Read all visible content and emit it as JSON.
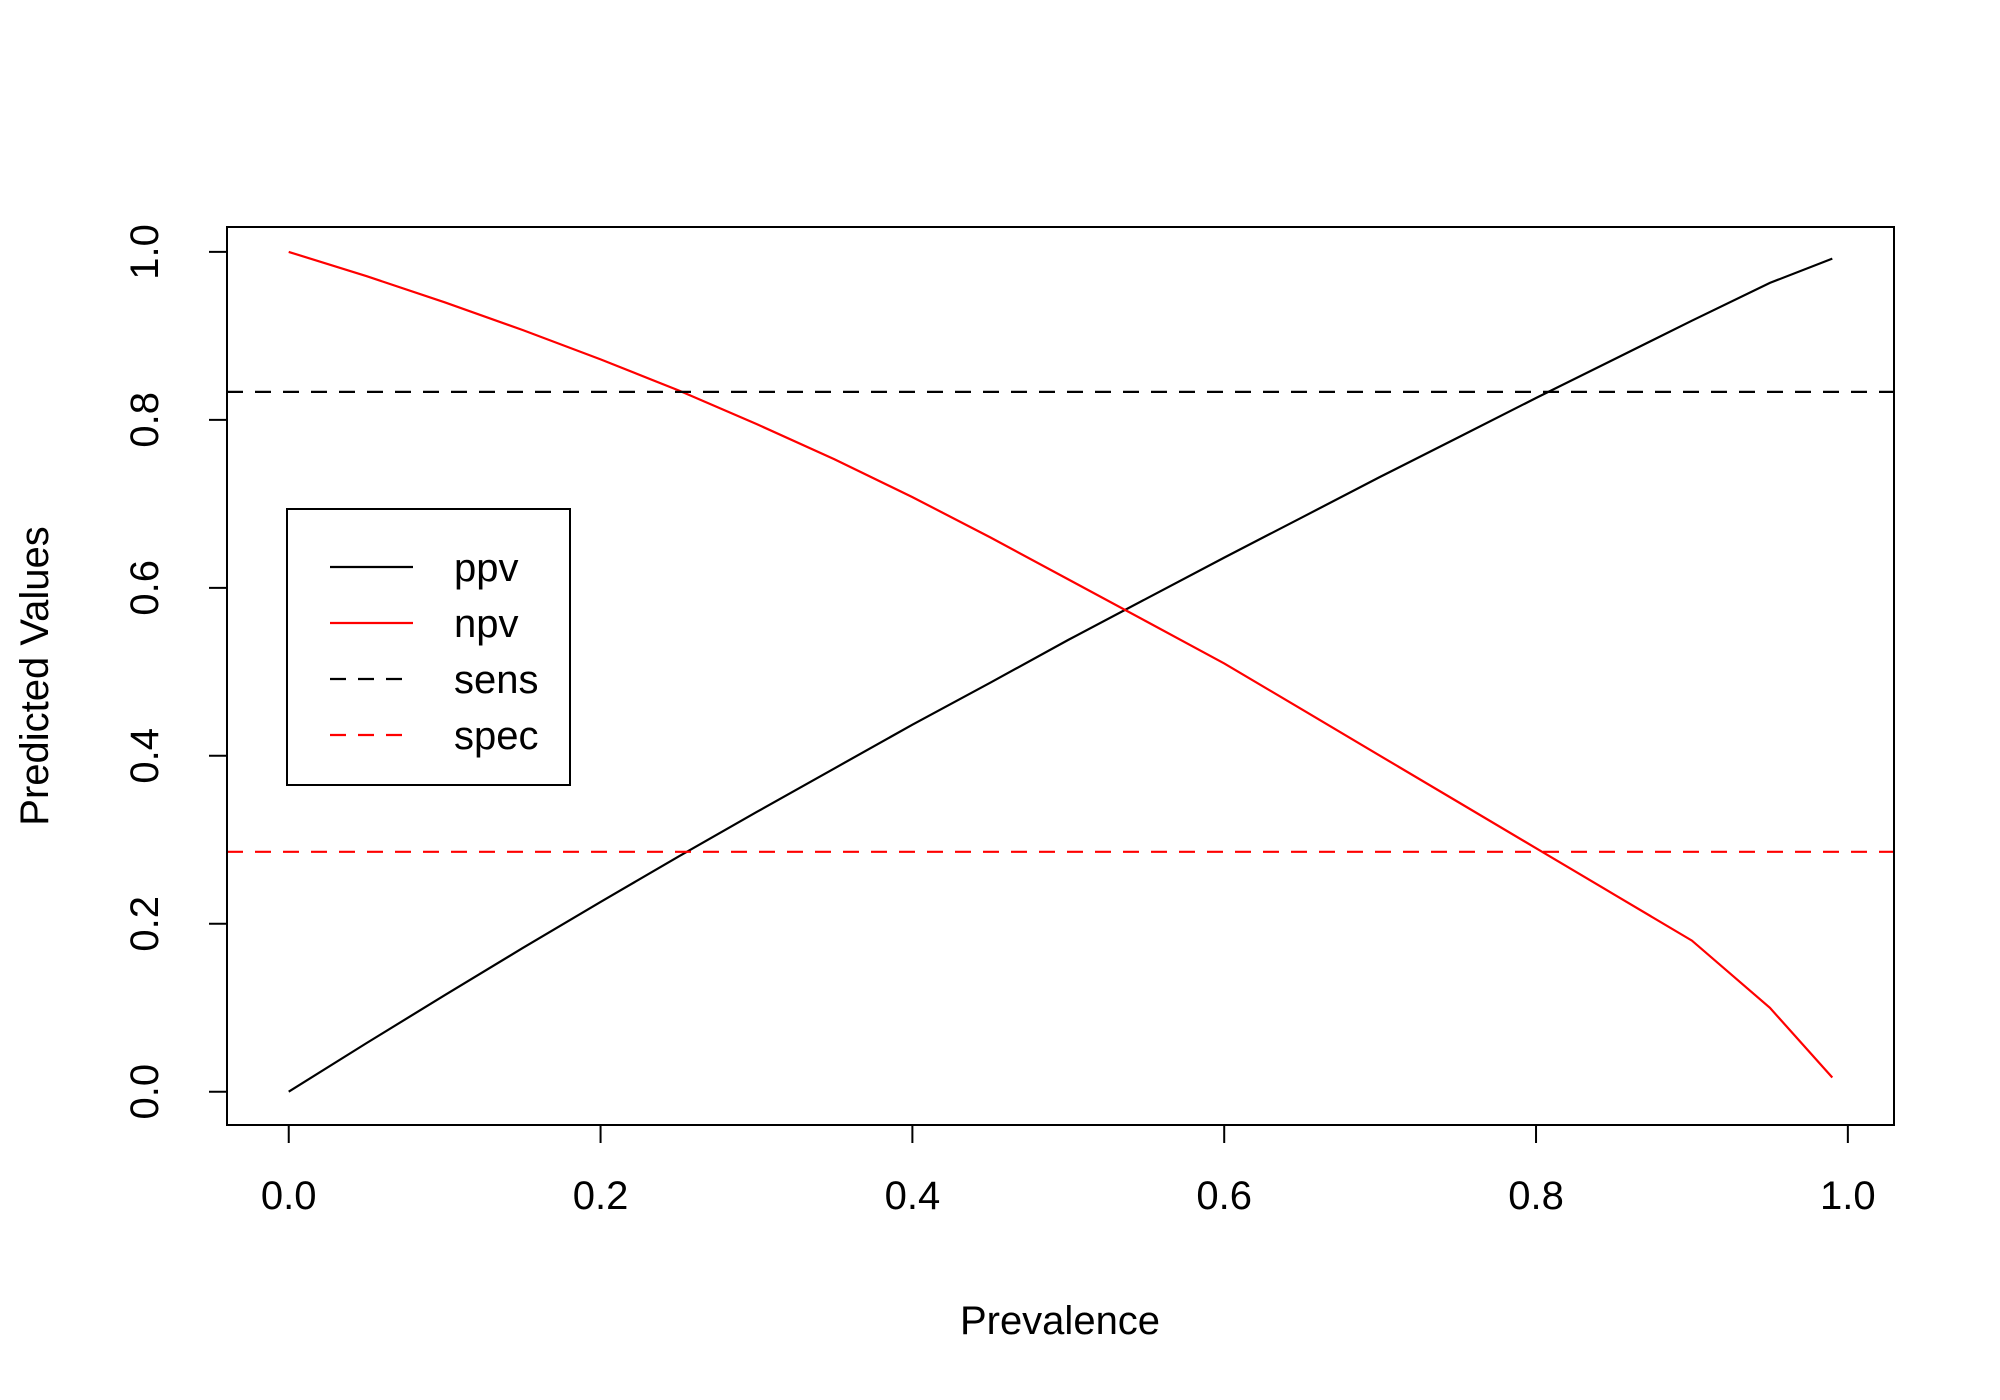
{
  "chart_data": {
    "type": "line",
    "title": "",
    "xlabel": "Prevalence",
    "ylabel": "Predicted Values",
    "xlim": [
      -0.0396,
      1.0296
    ],
    "ylim": [
      -0.0396,
      1.0296
    ],
    "xticks": [
      {
        "value": 0.0,
        "label": "0.0"
      },
      {
        "value": 0.2,
        "label": "0.2"
      },
      {
        "value": 0.4,
        "label": "0.4"
      },
      {
        "value": 0.6,
        "label": "0.6"
      },
      {
        "value": 0.8,
        "label": "0.8"
      },
      {
        "value": 1.0,
        "label": "1.0"
      }
    ],
    "yticks": [
      {
        "value": 0.0,
        "label": "0.0"
      },
      {
        "value": 0.2,
        "label": "0.2"
      },
      {
        "value": 0.4,
        "label": "0.4"
      },
      {
        "value": 0.6,
        "label": "0.6"
      },
      {
        "value": 0.8,
        "label": "0.8"
      },
      {
        "value": 1.0,
        "label": "1.0"
      }
    ],
    "grid": false,
    "legend": {
      "position": "left-center",
      "entries": [
        {
          "label": "ppv",
          "color": "#000000",
          "dashed": false
        },
        {
          "label": "npv",
          "color": "#ff0000",
          "dashed": false
        },
        {
          "label": "sens",
          "color": "#000000",
          "dashed": true
        },
        {
          "label": "spec",
          "color": "#ff0000",
          "dashed": true
        }
      ]
    },
    "series": [
      {
        "name": "ppv",
        "color": "#000000",
        "dashed": false,
        "x": [
          0.0,
          0.05,
          0.1,
          0.15,
          0.2,
          0.25,
          0.3,
          0.35,
          0.4,
          0.45,
          0.5,
          0.55,
          0.6,
          0.65,
          0.7,
          0.75,
          0.8,
          0.85,
          0.9,
          0.95,
          0.99
        ],
        "y": [
          0.0,
          0.058,
          0.115,
          0.171,
          0.226,
          0.28,
          0.333,
          0.385,
          0.437,
          0.487,
          0.538,
          0.587,
          0.636,
          0.684,
          0.732,
          0.779,
          0.826,
          0.872,
          0.918,
          0.963,
          0.992
        ]
      },
      {
        "name": "npv",
        "color": "#ff0000",
        "dashed": false,
        "x": [
          0.0,
          0.05,
          0.1,
          0.15,
          0.2,
          0.25,
          0.3,
          0.35,
          0.4,
          0.45,
          0.5,
          0.55,
          0.6,
          0.65,
          0.7,
          0.75,
          0.8,
          0.85,
          0.9,
          0.95,
          0.99
        ],
        "y": [
          1.0,
          0.971,
          0.94,
          0.907,
          0.872,
          0.835,
          0.795,
          0.753,
          0.708,
          0.66,
          0.61,
          0.56,
          0.51,
          0.455,
          0.4,
          0.345,
          0.29,
          0.235,
          0.18,
          0.1,
          0.017
        ]
      },
      {
        "name": "sens",
        "color": "#000000",
        "dashed": true,
        "x": [
          -0.0396,
          1.0296
        ],
        "y": [
          0.8333,
          0.8333
        ]
      },
      {
        "name": "spec",
        "color": "#ff0000",
        "dashed": true,
        "x": [
          -0.0396,
          1.0296
        ],
        "y": [
          0.2857,
          0.2857
        ]
      }
    ]
  }
}
